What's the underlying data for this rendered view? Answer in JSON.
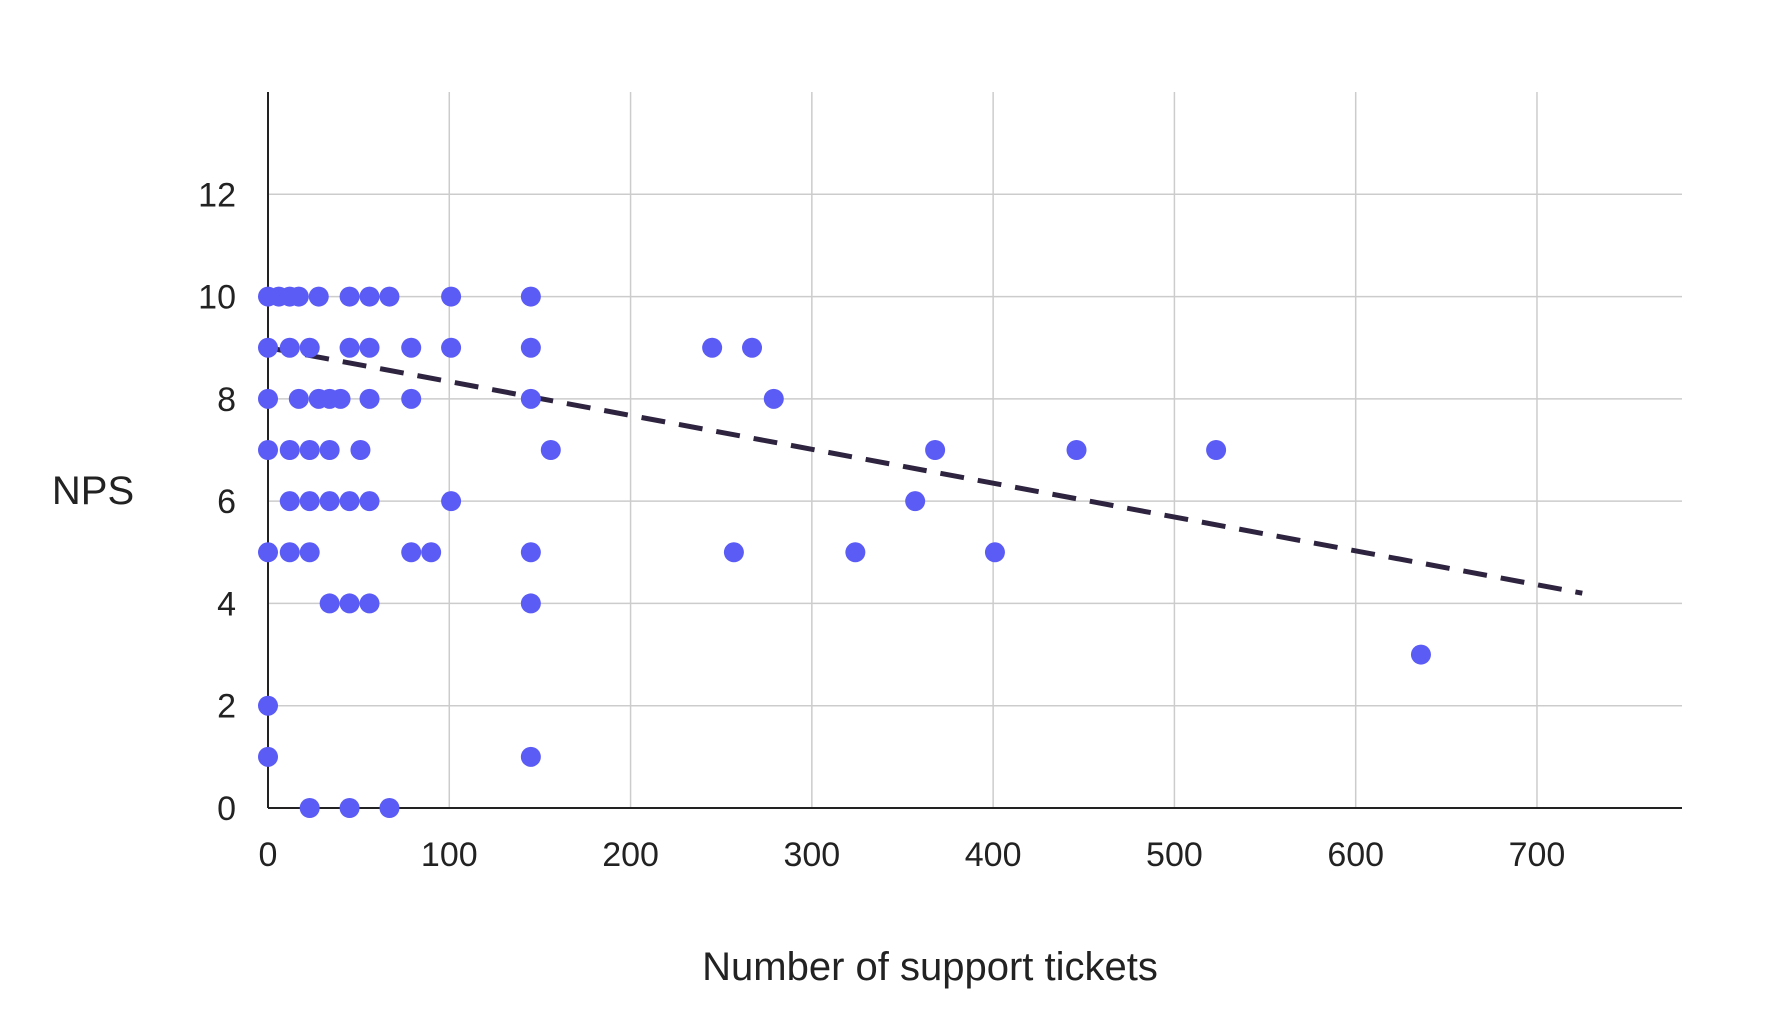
{
  "chart_data": {
    "type": "scatter",
    "title": "",
    "xlabel": "Number of support tickets",
    "ylabel": "NPS",
    "xlim": [
      0,
      780
    ],
    "ylim": [
      0,
      14
    ],
    "x_ticks": [
      0,
      100,
      200,
      300,
      400,
      500,
      600,
      700
    ],
    "y_ticks": [
      0,
      2,
      4,
      6,
      8,
      10,
      12
    ],
    "x_tick_labels": [
      "0",
      "100",
      "200",
      "300",
      "400",
      "500",
      "600",
      "700"
    ],
    "y_tick_labels": [
      "0",
      "2",
      "4",
      "6",
      "8",
      "10",
      "12"
    ],
    "grid": true,
    "legend": "none",
    "colors": {
      "point": "#5b5bf5",
      "trendline": "#2e2440",
      "grid": "#cccccc",
      "axis": "#222222"
    },
    "series": [
      {
        "points": [
          [
            0,
            10
          ],
          [
            6,
            10
          ],
          [
            12,
            10
          ],
          [
            17,
            10
          ],
          [
            28,
            10
          ],
          [
            45,
            10
          ],
          [
            56,
            10
          ],
          [
            67,
            10
          ],
          [
            101,
            10
          ],
          [
            145,
            10
          ],
          [
            0,
            9
          ],
          [
            12,
            9
          ],
          [
            23,
            9
          ],
          [
            45,
            9
          ],
          [
            56,
            9
          ],
          [
            79,
            9
          ],
          [
            101,
            9
          ],
          [
            145,
            9
          ],
          [
            245,
            9
          ],
          [
            267,
            9
          ],
          [
            0,
            8
          ],
          [
            17,
            8
          ],
          [
            28,
            8
          ],
          [
            34,
            8
          ],
          [
            40,
            8
          ],
          [
            56,
            8
          ],
          [
            79,
            8
          ],
          [
            145,
            8
          ],
          [
            279,
            8
          ],
          [
            0,
            7
          ],
          [
            12,
            7
          ],
          [
            23,
            7
          ],
          [
            34,
            7
          ],
          [
            51,
            7
          ],
          [
            156,
            7
          ],
          [
            368,
            7
          ],
          [
            446,
            7
          ],
          [
            523,
            7
          ],
          [
            12,
            6
          ],
          [
            23,
            6
          ],
          [
            34,
            6
          ],
          [
            45,
            6
          ],
          [
            56,
            6
          ],
          [
            101,
            6
          ],
          [
            357,
            6
          ],
          [
            0,
            5
          ],
          [
            12,
            5
          ],
          [
            23,
            5
          ],
          [
            79,
            5
          ],
          [
            90,
            5
          ],
          [
            145,
            5
          ],
          [
            257,
            5
          ],
          [
            324,
            5
          ],
          [
            401,
            5
          ],
          [
            34,
            4
          ],
          [
            45,
            4
          ],
          [
            56,
            4
          ],
          [
            145,
            4
          ],
          [
            636,
            3
          ],
          [
            0,
            2
          ],
          [
            0,
            1
          ],
          [
            145,
            1
          ],
          [
            23,
            0
          ],
          [
            45,
            0
          ],
          [
            67,
            0
          ]
        ]
      }
    ],
    "trendline": {
      "style": "dashed",
      "x": [
        0,
        725
      ],
      "y": [
        9.0,
        4.2
      ]
    }
  }
}
